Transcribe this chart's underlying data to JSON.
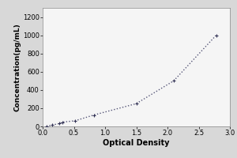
{
  "x_data": [
    0.06,
    0.15,
    0.27,
    0.32,
    0.52,
    0.82,
    1.5,
    2.1,
    2.78
  ],
  "y_data": [
    0,
    15,
    31,
    47,
    62,
    125,
    250,
    500,
    1000
  ],
  "xlabel": "Optical Density",
  "ylabel": "Concentration(pg/mL)",
  "xlim": [
    0,
    3
  ],
  "ylim": [
    0,
    1300
  ],
  "xticks": [
    0,
    0.5,
    1,
    1.5,
    2,
    2.5,
    3
  ],
  "yticks": [
    0,
    200,
    400,
    600,
    800,
    1000,
    1200
  ],
  "line_color": "#555577",
  "marker_color": "#333355",
  "outer_bg_color": "#d8d8d8",
  "plot_bg_color": "#f5f5f5",
  "axis_fontsize": 6.5,
  "tick_fontsize": 6,
  "label_fontsize": 7
}
